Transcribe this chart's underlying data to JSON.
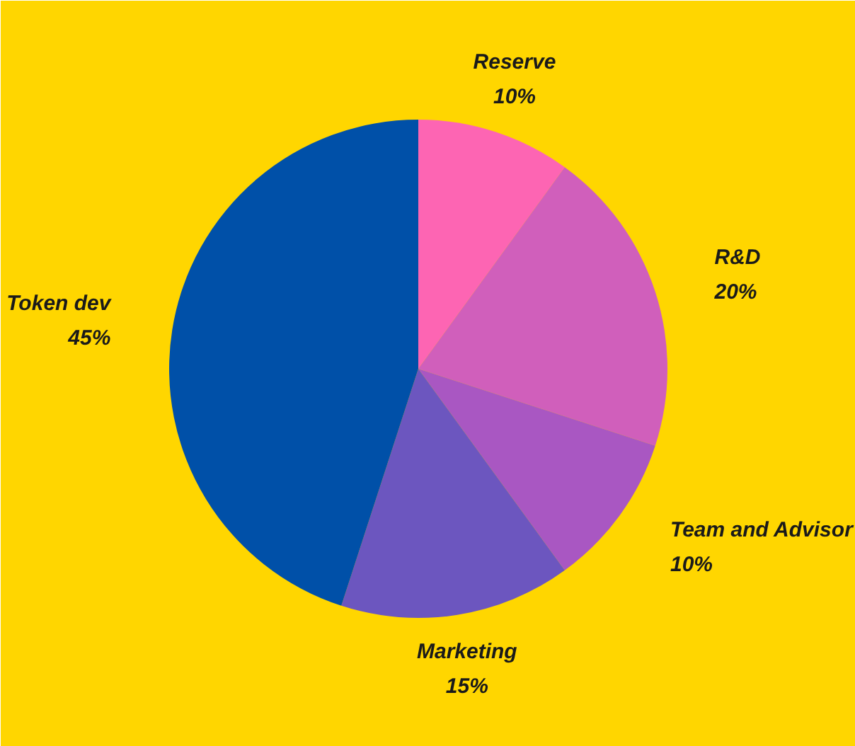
{
  "chart_data": {
    "type": "pie",
    "categories": [
      "Reserve",
      "R&D",
      "Team and Advisor",
      "Marketing",
      "Token dev"
    ],
    "values": [
      10,
      20,
      10,
      15,
      45
    ],
    "colors": [
      "#fd65b3",
      "#d05fbb",
      "#a957c2",
      "#6c56bf",
      "#0050a8"
    ],
    "value_labels": [
      "10%",
      "20%",
      "10%",
      "15%",
      "45%"
    ]
  }
}
